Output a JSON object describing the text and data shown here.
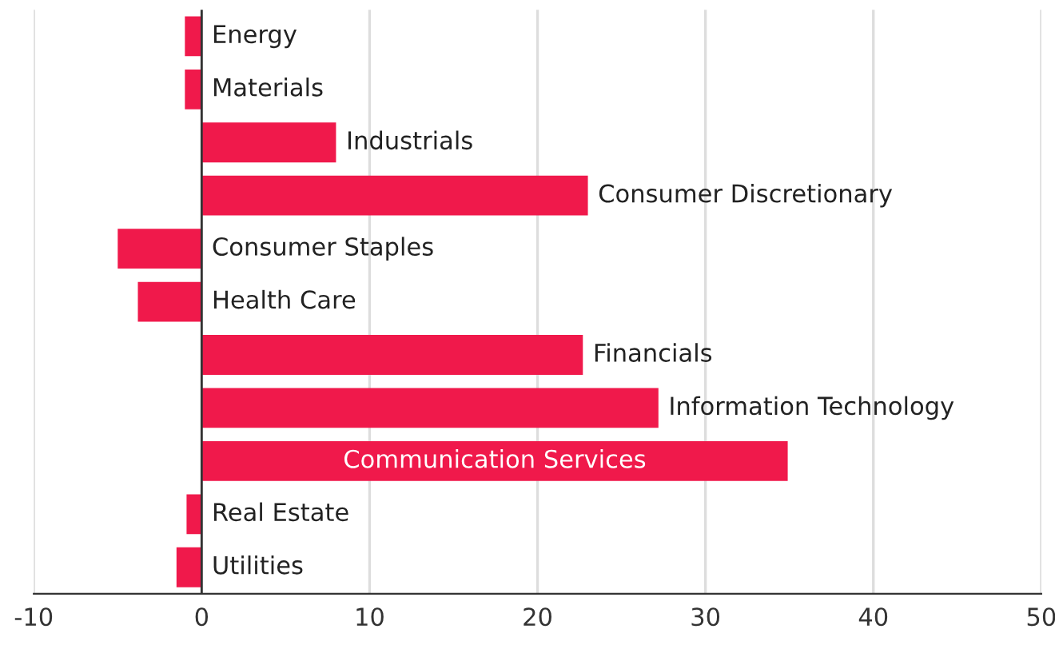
{
  "chart_data": {
    "type": "bar",
    "orientation": "horizontal",
    "categories": [
      "Energy",
      "Materials",
      "Industrials",
      "Consumer Discretionary",
      "Consumer Staples",
      "Health Care",
      "Financials",
      "Information Technology",
      "Communication Services",
      "Real Estate",
      "Utilities"
    ],
    "values": [
      -1.0,
      -1.0,
      8.0,
      23.0,
      -5.0,
      -3.8,
      22.7,
      27.2,
      34.9,
      -0.9,
      -1.5
    ],
    "color": "#f0194b",
    "xlim": [
      -10,
      50
    ],
    "xticks": [
      -10,
      0,
      10,
      20,
      30,
      40,
      50
    ],
    "grid": "x",
    "tick_labels": "x",
    "legend": false
  }
}
